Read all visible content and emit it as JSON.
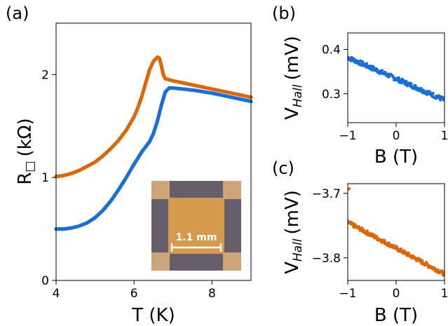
{
  "colors": {
    "orange": "#d9680a",
    "blue": "#1a6fd6",
    "inset_film": "#d59a4e",
    "inset_bg": "#675e6b",
    "inset_pad": "#cfa47a",
    "scale_bar": "#ffffff"
  },
  "chart_data": [
    {
      "panel_label": "(a)",
      "type": "scatter",
      "xlabel": "T (K)",
      "ylabel_main": "R",
      "ylabel_sub": "□",
      "ylabel_unit": "(kΩ)",
      "xlim": [
        4,
        9
      ],
      "ylim": [
        0,
        2.5
      ],
      "xticks": [
        "4",
        "6",
        "8"
      ],
      "xtick_values": [
        4,
        6,
        8
      ],
      "yticks": [
        "0",
        "1",
        "2"
      ],
      "ytick_values": [
        0,
        1,
        2
      ],
      "series": [
        {
          "color_key": "orange",
          "points": [
            [
              4.0,
              1.01
            ],
            [
              4.2,
              1.02
            ],
            [
              4.4,
              1.04
            ],
            [
              4.6,
              1.07
            ],
            [
              4.8,
              1.11
            ],
            [
              5.0,
              1.15
            ],
            [
              5.2,
              1.21
            ],
            [
              5.4,
              1.28
            ],
            [
              5.6,
              1.36
            ],
            [
              5.8,
              1.46
            ],
            [
              6.0,
              1.59
            ],
            [
              6.1,
              1.68
            ],
            [
              6.2,
              1.79
            ],
            [
              6.3,
              1.92
            ],
            [
              6.4,
              2.05
            ],
            [
              6.5,
              2.13
            ],
            [
              6.6,
              2.17
            ],
            [
              6.65,
              2.16
            ],
            [
              6.7,
              2.09
            ],
            [
              6.75,
              2.0
            ],
            [
              6.8,
              1.96
            ],
            [
              6.9,
              1.95
            ],
            [
              7.0,
              1.94
            ],
            [
              7.5,
              1.9
            ],
            [
              8.0,
              1.86
            ],
            [
              8.5,
              1.82
            ],
            [
              9.0,
              1.78
            ]
          ]
        },
        {
          "color_key": "blue",
          "points": [
            [
              4.0,
              0.5
            ],
            [
              4.2,
              0.5
            ],
            [
              4.4,
              0.51
            ],
            [
              4.6,
              0.53
            ],
            [
              4.8,
              0.56
            ],
            [
              5.0,
              0.61
            ],
            [
              5.2,
              0.68
            ],
            [
              5.4,
              0.77
            ],
            [
              5.6,
              0.88
            ],
            [
              5.8,
              1.0
            ],
            [
              6.0,
              1.13
            ],
            [
              6.2,
              1.25
            ],
            [
              6.4,
              1.35
            ],
            [
              6.5,
              1.43
            ],
            [
              6.6,
              1.55
            ],
            [
              6.7,
              1.7
            ],
            [
              6.8,
              1.83
            ],
            [
              6.9,
              1.87
            ],
            [
              7.0,
              1.87
            ],
            [
              7.5,
              1.85
            ],
            [
              8.0,
              1.82
            ],
            [
              8.5,
              1.78
            ],
            [
              9.0,
              1.74
            ]
          ]
        }
      ],
      "inset": {
        "scale_label": "1.1 mm"
      }
    },
    {
      "panel_label": "(b)",
      "type": "scatter",
      "xlabel": "B (T)",
      "ylabel_main": "V",
      "ylabel_sub": "Hall",
      "ylabel_unit": "(mV)",
      "xlim": [
        -1,
        1
      ],
      "ylim": [
        0.235,
        0.437
      ],
      "xticks": [
        "−1",
        "0",
        "1"
      ],
      "xtick_values": [
        -1,
        0,
        1
      ],
      "yticks": [
        "0.3",
        "0.4"
      ],
      "ytick_values": [
        0.3,
        0.4
      ],
      "series": [
        {
          "color_key": "blue",
          "line": [
            [
              -1,
              0.382
            ],
            [
              1,
              0.286
            ]
          ],
          "noise": 0.005
        }
      ]
    },
    {
      "panel_label": "(c)",
      "type": "scatter",
      "xlabel": "B (T)",
      "ylabel_main": "V",
      "ylabel_sub": "Hall",
      "ylabel_unit": "(mV)",
      "xlim": [
        -1,
        1
      ],
      "ylim": [
        -3.835,
        -3.685
      ],
      "xticks": [
        "−1",
        "0",
        "1"
      ],
      "xtick_values": [
        -1,
        0,
        1
      ],
      "yticks": [
        "−3.7",
        "−3.8"
      ],
      "ytick_values": [
        -3.7,
        -3.8
      ],
      "series": [
        {
          "color_key": "orange",
          "line": [
            [
              -1,
              -3.745
            ],
            [
              1,
              -3.825
            ]
          ],
          "noise": 0.003,
          "outlier": [
            -0.97,
            -3.693
          ]
        }
      ]
    }
  ]
}
